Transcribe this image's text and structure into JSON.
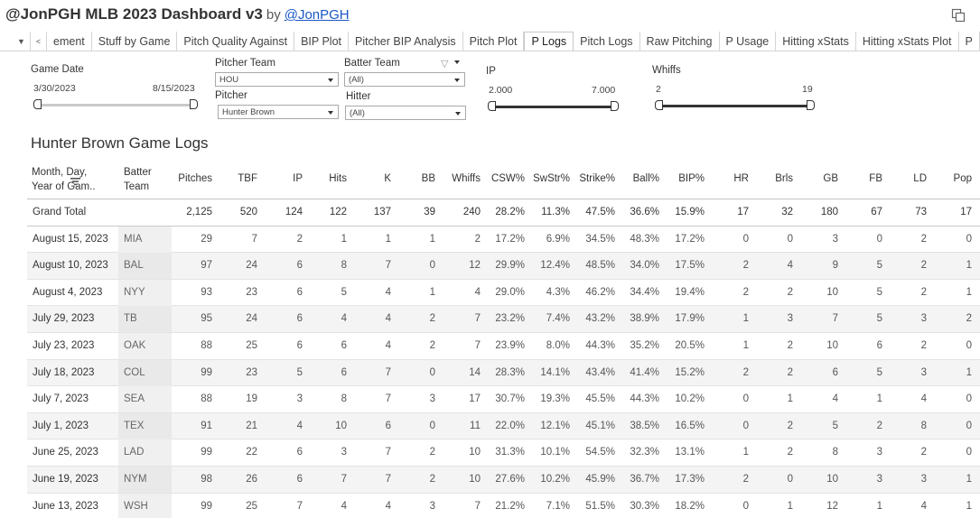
{
  "header": {
    "title": "@JonPGH MLB 2023 Dashboard v3",
    "by": "by",
    "author": "@JonPGH"
  },
  "tabs": [
    "ement",
    "Stuff by Game",
    "Pitch Quality Against",
    "BIP Plot",
    "Pitcher BIP Analysis",
    "Pitch Plot",
    "P Logs",
    "Pitch Logs",
    "Raw Pitching",
    "P Usage",
    "Hitting xStats",
    "Hitting xStats Plot",
    "P"
  ],
  "active_tab": "P Logs",
  "filters": {
    "game_date": {
      "label": "Game Date",
      "start": "3/30/2023",
      "end": "8/15/2023"
    },
    "pitcher_team": {
      "label": "Pitcher Team",
      "value": "HOU"
    },
    "batter_team": {
      "label": "Batter Team",
      "value": "(All)"
    },
    "pitcher": {
      "label": "Pitcher",
      "value": "Hunter Brown"
    },
    "hitter": {
      "label": "Hitter",
      "value": "(All)"
    },
    "ip": {
      "label": "IP",
      "min": "2.000",
      "max": "7.000"
    },
    "whiffs": {
      "label": "Whiffs",
      "min": "2",
      "max": "19"
    }
  },
  "table": {
    "title": "Hunter Brown Game Logs",
    "date_header_1": "Month, Day,",
    "date_header_2": "Year of Gam..",
    "team_header_1": "Batter",
    "team_header_2": "Team",
    "columns": [
      "Pitches",
      "TBF",
      "IP",
      "Hits",
      "K",
      "BB",
      "Whiffs",
      "CSW%",
      "SwStr%",
      "Strike%",
      "Ball%",
      "BIP%",
      "HR",
      "Brls",
      "GB",
      "FB",
      "LD",
      "Pop"
    ],
    "total": {
      "label": "Grand Total",
      "values": [
        "2,125",
        "520",
        "124",
        "122",
        "137",
        "39",
        "240",
        "28.2%",
        "11.3%",
        "47.5%",
        "36.6%",
        "15.9%",
        "17",
        "32",
        "180",
        "67",
        "73",
        "17"
      ]
    },
    "rows": [
      {
        "date": "August 15, 2023",
        "team": "MIA",
        "values": [
          "29",
          "7",
          "2",
          "1",
          "1",
          "1",
          "2",
          "17.2%",
          "6.9%",
          "34.5%",
          "48.3%",
          "17.2%",
          "0",
          "0",
          "3",
          "0",
          "2",
          "0"
        ]
      },
      {
        "date": "August 10, 2023",
        "team": "BAL",
        "values": [
          "97",
          "24",
          "6",
          "8",
          "7",
          "0",
          "12",
          "29.9%",
          "12.4%",
          "48.5%",
          "34.0%",
          "17.5%",
          "2",
          "4",
          "9",
          "5",
          "2",
          "1"
        ]
      },
      {
        "date": "August 4, 2023",
        "team": "NYY",
        "values": [
          "93",
          "23",
          "6",
          "5",
          "4",
          "1",
          "4",
          "29.0%",
          "4.3%",
          "46.2%",
          "34.4%",
          "19.4%",
          "2",
          "2",
          "10",
          "5",
          "2",
          "1"
        ]
      },
      {
        "date": "July 29, 2023",
        "team": "TB",
        "values": [
          "95",
          "24",
          "6",
          "4",
          "4",
          "2",
          "7",
          "23.2%",
          "7.4%",
          "43.2%",
          "38.9%",
          "17.9%",
          "1",
          "3",
          "7",
          "5",
          "3",
          "2"
        ]
      },
      {
        "date": "July 23, 2023",
        "team": "OAK",
        "values": [
          "88",
          "25",
          "6",
          "6",
          "4",
          "2",
          "7",
          "23.9%",
          "8.0%",
          "44.3%",
          "35.2%",
          "20.5%",
          "1",
          "2",
          "10",
          "6",
          "2",
          "0"
        ]
      },
      {
        "date": "July 18, 2023",
        "team": "COL",
        "values": [
          "99",
          "23",
          "5",
          "6",
          "7",
          "0",
          "14",
          "28.3%",
          "14.1%",
          "43.4%",
          "41.4%",
          "15.2%",
          "2",
          "2",
          "6",
          "5",
          "3",
          "1"
        ]
      },
      {
        "date": "July 7, 2023",
        "team": "SEA",
        "values": [
          "88",
          "19",
          "3",
          "8",
          "7",
          "3",
          "17",
          "30.7%",
          "19.3%",
          "45.5%",
          "44.3%",
          "10.2%",
          "0",
          "1",
          "4",
          "1",
          "4",
          "0"
        ]
      },
      {
        "date": "July 1, 2023",
        "team": "TEX",
        "values": [
          "91",
          "21",
          "4",
          "10",
          "6",
          "0",
          "11",
          "22.0%",
          "12.1%",
          "45.1%",
          "38.5%",
          "16.5%",
          "0",
          "2",
          "5",
          "2",
          "8",
          "0"
        ]
      },
      {
        "date": "June 25, 2023",
        "team": "LAD",
        "values": [
          "99",
          "22",
          "6",
          "3",
          "7",
          "2",
          "10",
          "31.3%",
          "10.1%",
          "54.5%",
          "32.3%",
          "13.1%",
          "1",
          "2",
          "8",
          "3",
          "2",
          "0"
        ]
      },
      {
        "date": "June 19, 2023",
        "team": "NYM",
        "values": [
          "98",
          "26",
          "6",
          "7",
          "7",
          "2",
          "10",
          "27.6%",
          "10.2%",
          "45.9%",
          "36.7%",
          "17.3%",
          "2",
          "0",
          "10",
          "3",
          "3",
          "1"
        ]
      },
      {
        "date": "June 13, 2023",
        "team": "WSH",
        "values": [
          "99",
          "25",
          "7",
          "4",
          "4",
          "3",
          "7",
          "21.2%",
          "7.1%",
          "51.5%",
          "30.3%",
          "18.2%",
          "0",
          "1",
          "12",
          "1",
          "4",
          "1"
        ]
      }
    ]
  }
}
